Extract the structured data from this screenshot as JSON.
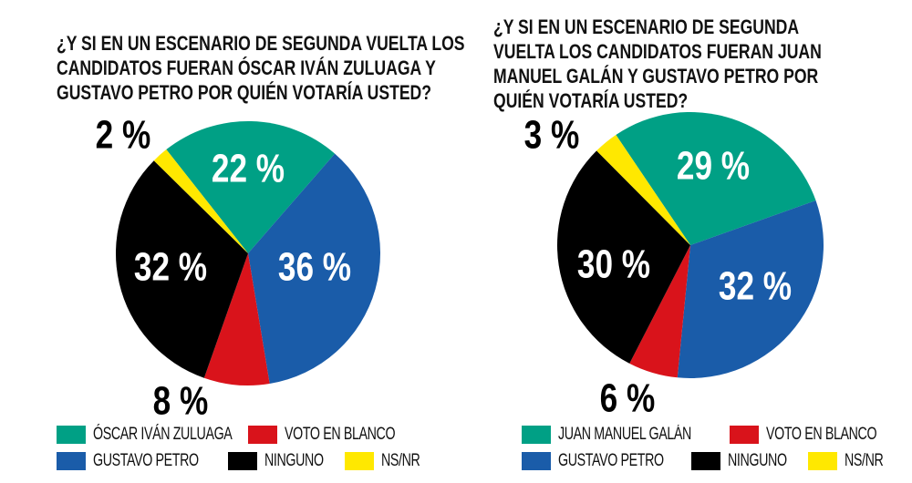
{
  "chart_data": [
    {
      "type": "pie",
      "title": "¿Y SI EN UN ESCENARIO DE SEGUNDA VUELTA LOS CANDIDATOS FUERAN ÓSCAR IVÁN ZULUAGA Y GUSTAVO PETRO POR QUIÉN VOTARÍA USTED?",
      "slices": [
        {
          "name": "ÓSCAR IVÁN ZULUAGA",
          "value": 22,
          "label": "22 %",
          "color": "#00a085"
        },
        {
          "name": "GUSTAVO PETRO",
          "value": 36,
          "label": "36 %",
          "color": "#1a5ca9"
        },
        {
          "name": "VOTO EN BLANCO",
          "value": 8,
          "label": "8 %",
          "color": "#d9131b"
        },
        {
          "name": "NINGUNO",
          "value": 32,
          "label": "32 %",
          "color": "#000000"
        },
        {
          "name": "NS/NR",
          "value": 2,
          "label": "2 %",
          "color": "#ffe800"
        }
      ],
      "legend_placement": "bottom"
    },
    {
      "type": "pie",
      "title": "¿Y SI EN UN ESCENARIO DE SEGUNDA VUELTA LOS CANDIDATOS FUERAN JUAN MANUEL GALÁN Y GUSTAVO PETRO POR QUIÉN VOTARÍA USTED?",
      "slices": [
        {
          "name": "JUAN MANUEL GALÁN",
          "value": 29,
          "label": "29 %",
          "color": "#00a085"
        },
        {
          "name": "GUSTAVO PETRO",
          "value": 32,
          "label": "32 %",
          "color": "#1a5ca9"
        },
        {
          "name": "VOTO EN BLANCO",
          "value": 6,
          "label": "6 %",
          "color": "#d9131b"
        },
        {
          "name": "NINGUNO",
          "value": 30,
          "label": "30 %",
          "color": "#000000"
        },
        {
          "name": "NS/NR",
          "value": 3,
          "label": "3 %",
          "color": "#ffe800"
        }
      ],
      "legend_placement": "bottom"
    }
  ],
  "titles": [
    "¿Y SI EN UN ESCENARIO DE SEGUNDA VUELTA LOS\nCANDIDATOS FUERAN ÓSCAR IVÁN ZULUAGA Y\nGUSTAVO PETRO POR QUIÉN VOTARÍA USTED?",
    "¿Y SI EN UN ESCENARIO DE SEGUNDA\nVUELTA LOS CANDIDATOS FUERAN JUAN\nMANUEL GALÁN Y GUSTAVO PETRO POR\nQUIÉN VOTARÍA USTED?"
  ]
}
